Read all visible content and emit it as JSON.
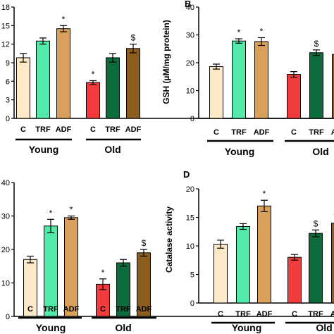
{
  "colors": {
    "C_young": "#fde8c8",
    "TRF_young": "#52eaa8",
    "ADF_young": "#d9a05b",
    "C_old": "#f03c3c",
    "TRF_old": "#0e6b3c",
    "ADF_old": "#8b5e1e"
  },
  "chart_data": [
    {
      "type": "bar",
      "panel_letter": "",
      "ylabel": "",
      "ylim": [
        0,
        18
      ],
      "yticks": [
        0,
        3,
        6,
        9,
        12,
        15,
        18
      ],
      "categories": [
        "C",
        "TRF",
        "ADF",
        "C",
        "TRF",
        "ADF"
      ],
      "groups": [
        "Young",
        "Old"
      ],
      "values": [
        9.8,
        12.5,
        14.5,
        5.8,
        9.8,
        11.3
      ],
      "errors": [
        0.7,
        0.5,
        0.5,
        0.3,
        0.7,
        0.7
      ],
      "markers": [
        "",
        "",
        "*",
        "*",
        "",
        "$"
      ]
    },
    {
      "type": "bar",
      "panel_letter": "B",
      "ylabel": "GSH (µM/mg protein)",
      "ylim": [
        0,
        40
      ],
      "yticks": [
        0,
        10,
        20,
        30,
        40
      ],
      "categories": [
        "C",
        "TRF",
        "ADF",
        "C",
        "TRF",
        "ADF"
      ],
      "groups": [
        "Young",
        "Old"
      ],
      "values": [
        18.6,
        27.8,
        27.6,
        15.8,
        23.6,
        23.0
      ],
      "errors": [
        0.9,
        0.8,
        1.4,
        1.0,
        1.0,
        1.0
      ],
      "markers": [
        "",
        "*",
        "*",
        "",
        "$",
        ""
      ]
    },
    {
      "type": "bar",
      "panel_letter": "",
      "ylabel": "",
      "ylim": [
        0,
        40
      ],
      "yticks": [
        0,
        10,
        20,
        30,
        40
      ],
      "categories": [
        "C",
        "TRF",
        "ADF",
        "C",
        "TRF",
        "ADF"
      ],
      "groups": [
        "Young",
        "Old"
      ],
      "values": [
        17.0,
        27.0,
        29.5,
        9.6,
        16.0,
        19.0
      ],
      "errors": [
        1.0,
        2.0,
        0.5,
        1.6,
        1.0,
        1.0
      ],
      "markers": [
        "",
        "*",
        "*",
        "*",
        "",
        "$"
      ]
    },
    {
      "type": "bar",
      "panel_letter": "D",
      "ylabel": "Catalase activity",
      "ylim": [
        0,
        20
      ],
      "yticks": [
        0,
        5,
        10,
        15,
        20
      ],
      "categories": [
        "C",
        "TRF",
        "ADF",
        "C",
        "TRF",
        "ADF"
      ],
      "groups": [
        "Young",
        "Old"
      ],
      "values": [
        10.3,
        13.4,
        17.0,
        8.0,
        12.2,
        14.0
      ],
      "errors": [
        0.7,
        0.5,
        1.0,
        0.5,
        0.6,
        0.7
      ],
      "markers": [
        "",
        "",
        "*",
        "",
        "$",
        "$$"
      ]
    }
  ]
}
